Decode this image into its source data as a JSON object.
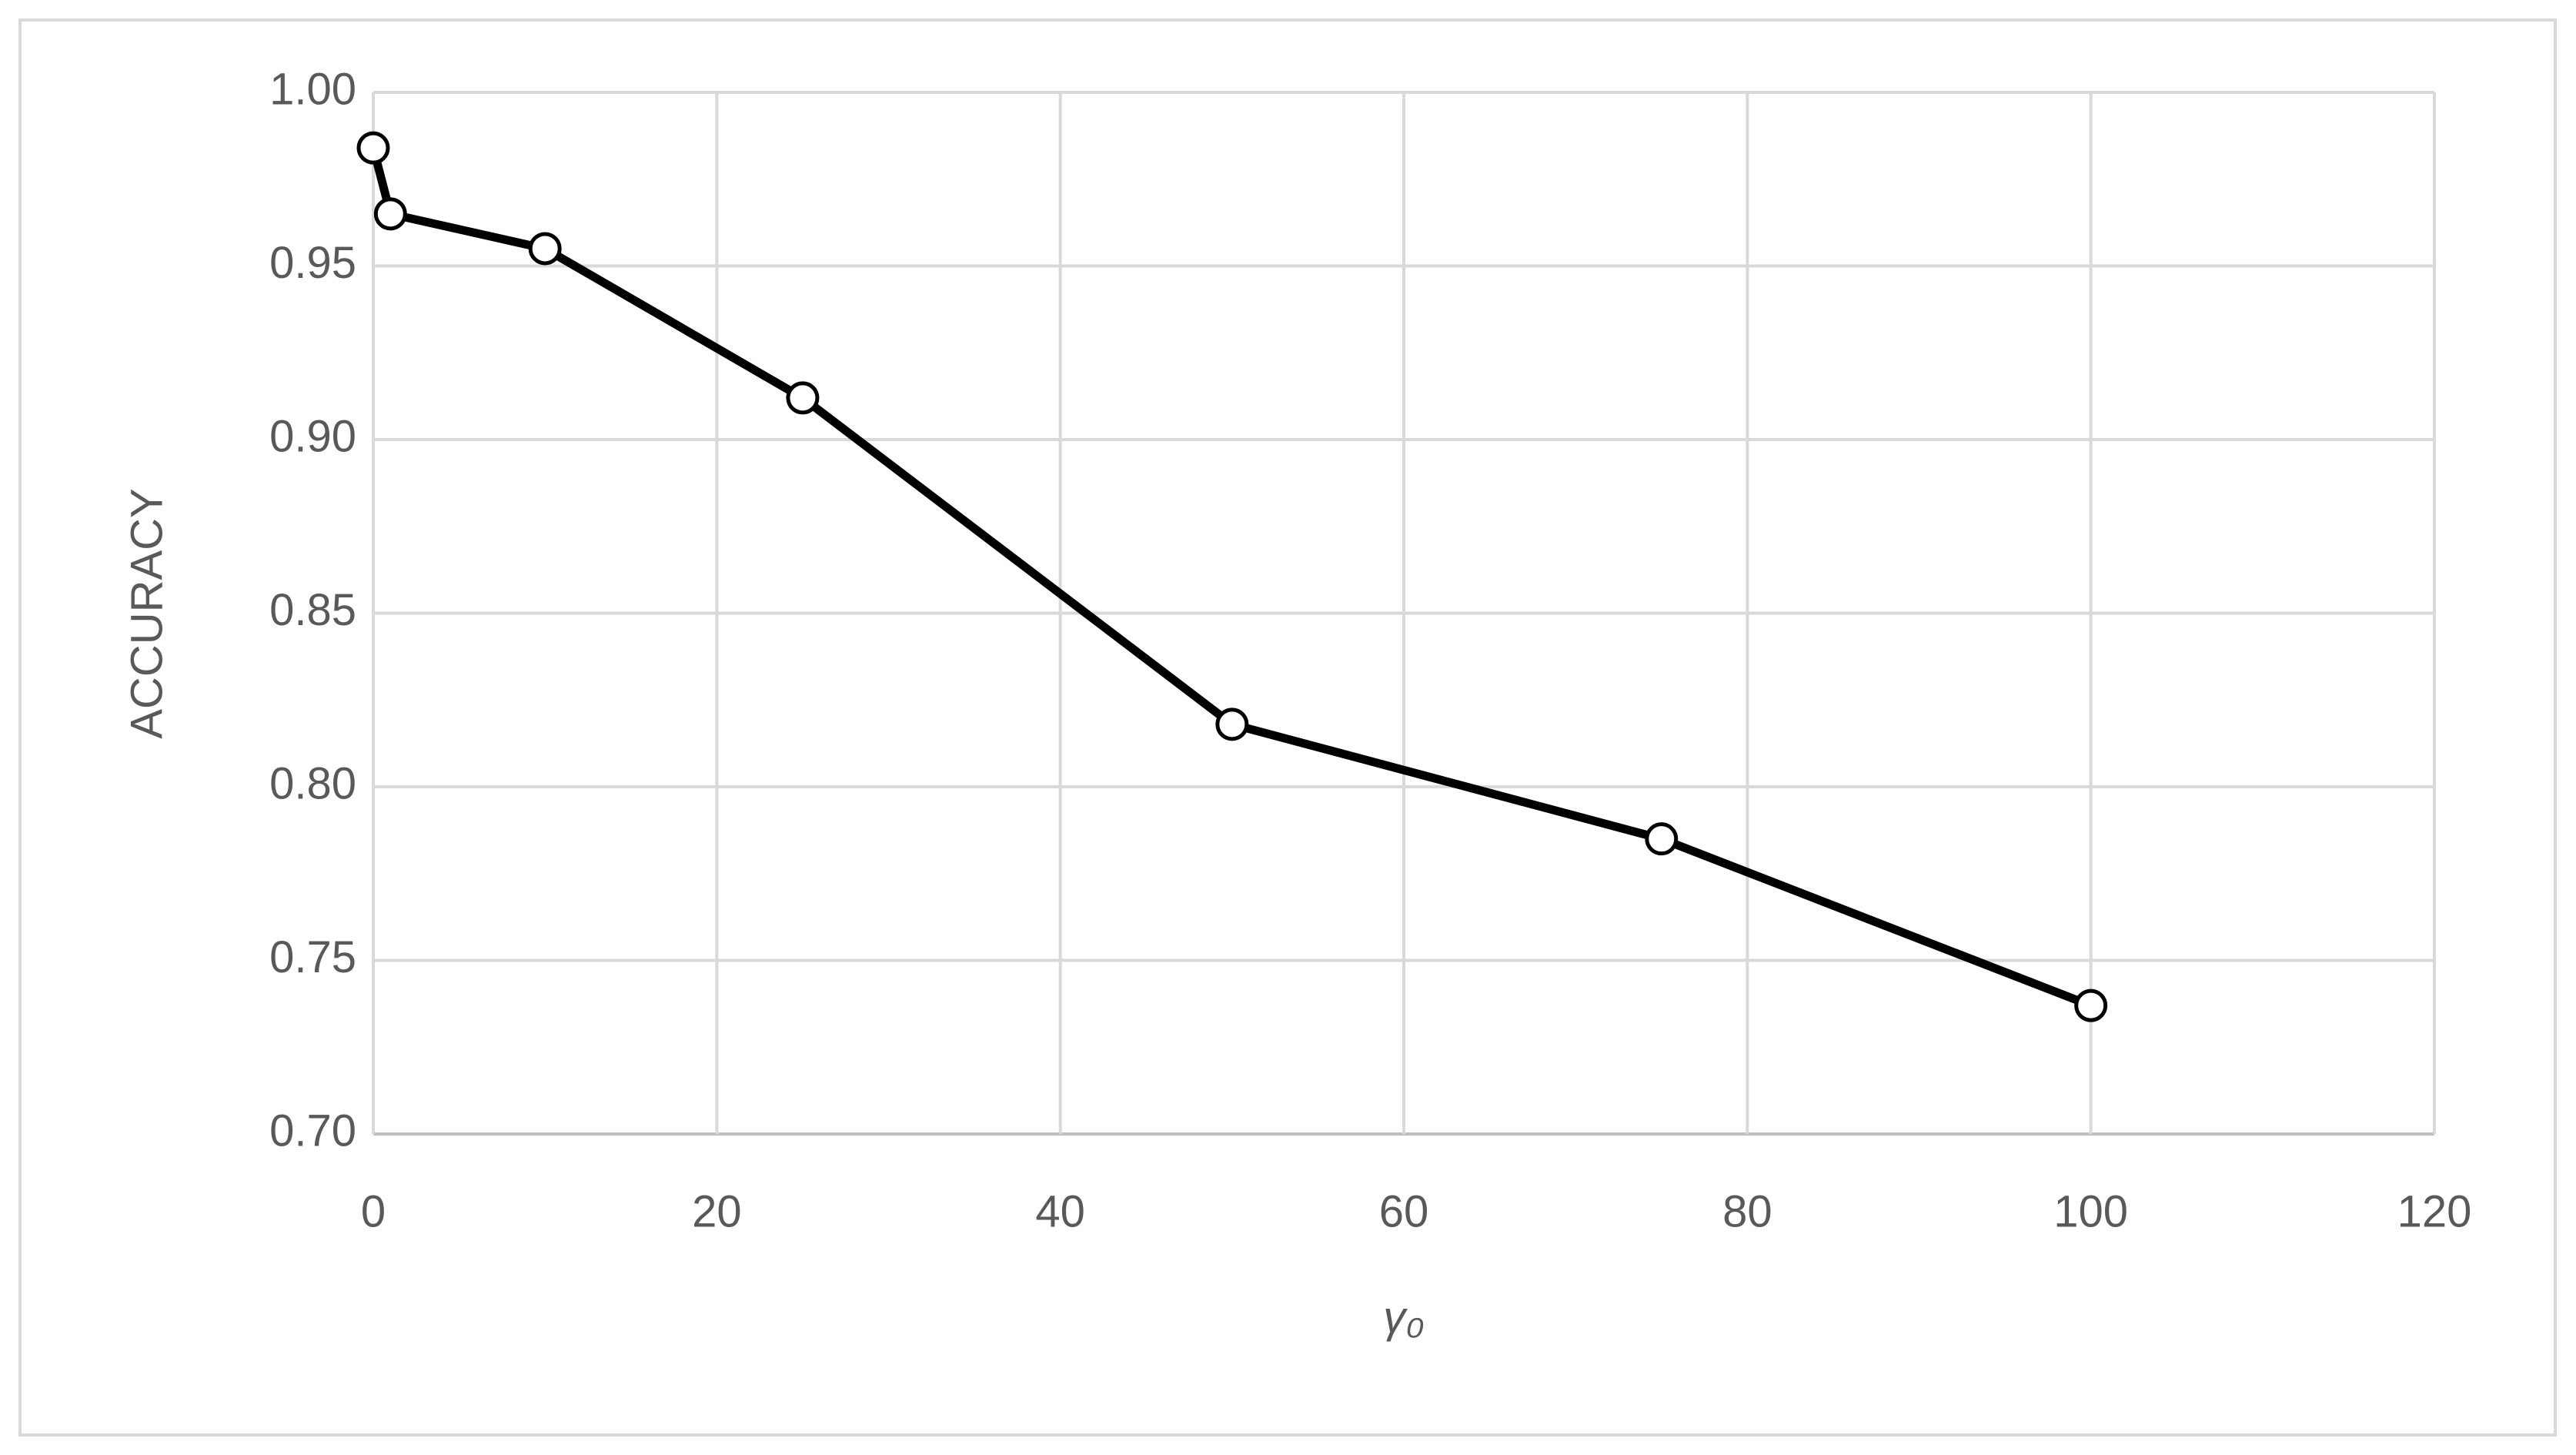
{
  "chart_data": {
    "type": "line",
    "xlabel": "γ₀",
    "ylabel": "ACCURACY",
    "x": [
      0,
      1,
      10,
      25,
      50,
      75,
      100
    ],
    "series": [
      {
        "color": "#000000",
        "values": [
          0.984,
          0.965,
          0.955,
          0.912,
          0.818,
          0.785,
          0.737
        ]
      }
    ],
    "xlim": [
      0,
      120
    ],
    "xticks": [
      0,
      20,
      40,
      60,
      80,
      100,
      120
    ],
    "ylim": [
      0.7,
      1
    ],
    "yticks": [
      {
        "value": 0.7,
        "label": "0.70"
      },
      {
        "value": 0.75,
        "label": "0.75"
      },
      {
        "value": 0.8,
        "label": "0.80"
      },
      {
        "value": 0.85,
        "label": "0.85"
      },
      {
        "value": 0.9,
        "label": "0.90"
      },
      {
        "value": 0.95,
        "label": "0.95"
      },
      {
        "value": 1,
        "label": "1.00"
      }
    ],
    "grid": true
  }
}
